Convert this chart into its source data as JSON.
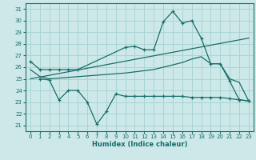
{
  "xlabel": "Humidex (Indice chaleur)",
  "bg_color": "#cce8e8",
  "grid_color": "#aad4d4",
  "line_color": "#1a6e6a",
  "xlim": [
    -0.5,
    23.5
  ],
  "ylim": [
    20.5,
    31.5
  ],
  "yticks": [
    21,
    22,
    23,
    24,
    25,
    26,
    27,
    28,
    29,
    30,
    31
  ],
  "xticks": [
    0,
    1,
    2,
    3,
    4,
    5,
    6,
    7,
    8,
    9,
    10,
    11,
    12,
    13,
    14,
    15,
    16,
    17,
    18,
    19,
    20,
    21,
    22,
    23
  ],
  "series": [
    {
      "x": [
        0,
        1,
        2,
        3,
        4,
        5,
        10,
        11,
        12,
        13,
        14,
        15,
        16,
        17,
        18,
        19,
        20,
        21,
        22,
        23
      ],
      "y": [
        26.5,
        25.8,
        25.8,
        25.8,
        25.8,
        25.8,
        27.7,
        27.8,
        27.5,
        27.5,
        29.9,
        30.8,
        29.8,
        30.0,
        28.5,
        26.3,
        26.3,
        24.8,
        23.2,
        23.1
      ],
      "markers": true
    },
    {
      "x": [
        0,
        1,
        2,
        10,
        11,
        12,
        13,
        14,
        15,
        16,
        17,
        18,
        19,
        20,
        21,
        22,
        23
      ],
      "y": [
        25.8,
        25.2,
        25.0,
        25.5,
        25.6,
        25.7,
        25.8,
        26.0,
        26.2,
        26.4,
        26.7,
        26.9,
        26.3,
        26.3,
        25.0,
        24.7,
        23.1
      ],
      "markers": false
    },
    {
      "x": [
        0,
        23
      ],
      "y": [
        25.0,
        28.5
      ],
      "markers": false
    },
    {
      "x": [
        1,
        2,
        3,
        4,
        5,
        6,
        7,
        8,
        9,
        10,
        11,
        12,
        13,
        14,
        15,
        16,
        17,
        18,
        19,
        20,
        21,
        22,
        23
      ],
      "y": [
        25.0,
        24.9,
        23.2,
        24.0,
        24.0,
        23.0,
        21.1,
        22.2,
        23.7,
        23.5,
        23.5,
        23.5,
        23.5,
        23.5,
        23.5,
        23.5,
        23.4,
        23.4,
        23.4,
        23.4,
        23.3,
        23.2,
        23.1
      ],
      "markers": true
    }
  ]
}
